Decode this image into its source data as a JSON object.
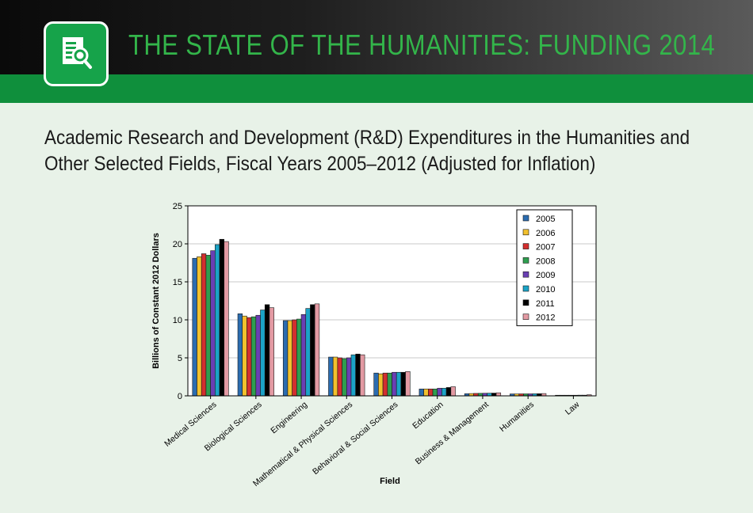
{
  "header": {
    "title": "THE STATE OF THE HUMANITIES: FUNDING 2014"
  },
  "subtitle_lines": [
    "Academic Research and Development (R&D) Expenditures in the Humanities and",
    "Other Selected Fields, Fiscal Years 2005–2012 (Adjusted for Inflation)"
  ],
  "colors": {
    "banner_green": "#0f8f3c",
    "title_green": "#33b54a",
    "logo_green": "#16a34a"
  },
  "icons": {
    "logo": "document-search-icon"
  },
  "chart_data": {
    "type": "bar",
    "xlabel": "Field",
    "ylabel": "Billions of Constant 2012 Dollars",
    "ylim": [
      0,
      25
    ],
    "yticks": [
      0,
      5,
      10,
      15,
      20,
      25
    ],
    "grid": true,
    "legend_position": "top-right",
    "categories": [
      "Medical Sciences",
      "Biological Sciences",
      "Engineering",
      "Mathematical & Physical Sciences",
      "Behavioral & Social Sciences",
      "Education",
      "Business & Management",
      "Humanities",
      "Law"
    ],
    "series": [
      {
        "name": "2005",
        "color": "#2b6cb0",
        "values": [
          18.1,
          10.8,
          9.9,
          5.1,
          3.0,
          0.9,
          0.28,
          0.25,
          0.08
        ]
      },
      {
        "name": "2006",
        "color": "#f2c12e",
        "values": [
          18.3,
          10.5,
          9.9,
          5.1,
          2.9,
          0.9,
          0.3,
          0.25,
          0.08
        ]
      },
      {
        "name": "2007",
        "color": "#d32f2f",
        "values": [
          18.7,
          10.3,
          10.0,
          5.0,
          3.0,
          0.9,
          0.32,
          0.26,
          0.08
        ]
      },
      {
        "name": "2008",
        "color": "#2e9e4f",
        "values": [
          18.5,
          10.4,
          10.1,
          4.9,
          3.0,
          0.9,
          0.33,
          0.26,
          0.08
        ]
      },
      {
        "name": "2009",
        "color": "#6a3fb3",
        "values": [
          19.1,
          10.6,
          10.7,
          5.0,
          3.1,
          1.0,
          0.34,
          0.26,
          0.08
        ]
      },
      {
        "name": "2010",
        "color": "#1ba3c6",
        "values": [
          19.9,
          11.3,
          11.5,
          5.4,
          3.1,
          1.0,
          0.35,
          0.27,
          0.09
        ]
      },
      {
        "name": "2011",
        "color": "#000000",
        "values": [
          20.6,
          12.0,
          12.0,
          5.5,
          3.1,
          1.1,
          0.36,
          0.28,
          0.09
        ]
      },
      {
        "name": "2012",
        "color": "#e39aa3",
        "values": [
          20.3,
          11.6,
          12.1,
          5.4,
          3.2,
          1.2,
          0.4,
          0.3,
          0.14
        ]
      }
    ]
  }
}
